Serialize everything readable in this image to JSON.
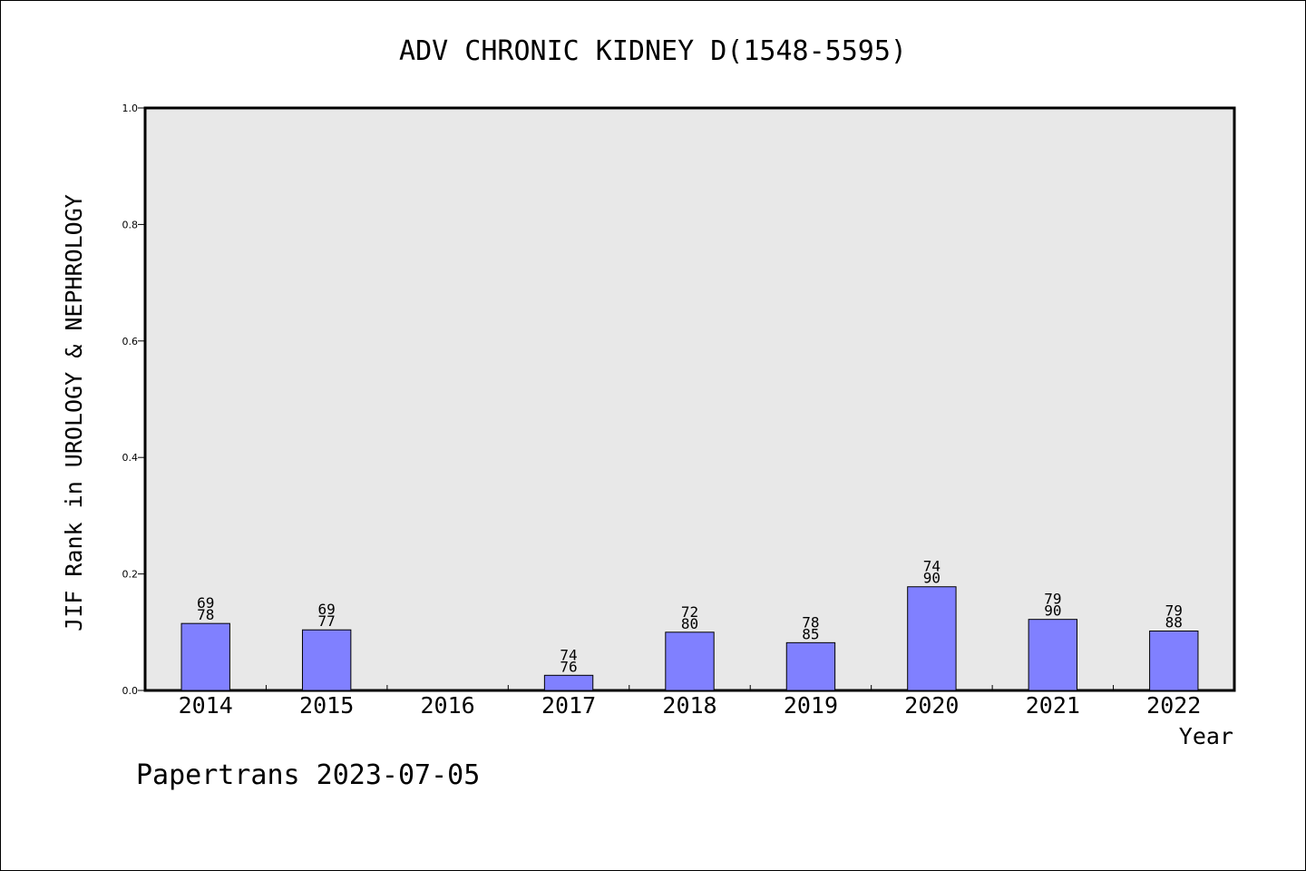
{
  "chart_data": {
    "type": "bar",
    "title": "ADV CHRONIC KIDNEY D(1548-5595)",
    "xlabel": "Year",
    "ylabel": "JIF Rank in UROLOGY & NEPHROLOGY",
    "ylim": [
      0.0,
      1.0
    ],
    "yticks": [
      "0.0",
      "0.2",
      "0.4",
      "0.6",
      "0.8",
      "1.0"
    ],
    "categories": [
      "2014",
      "2015",
      "2016",
      "2017",
      "2018",
      "2019",
      "2020",
      "2021",
      "2022"
    ],
    "values": [
      0.115,
      0.104,
      null,
      0.026,
      0.1,
      0.082,
      0.178,
      0.122,
      0.102
    ],
    "labels": [
      [
        "69",
        "78"
      ],
      [
        "69",
        "77"
      ],
      null,
      [
        "74",
        "76"
      ],
      [
        "72",
        "80"
      ],
      [
        "78",
        "85"
      ],
      [
        "74",
        "90"
      ],
      [
        "79",
        "90"
      ],
      [
        "79",
        "88"
      ]
    ],
    "grid": false,
    "colors": {
      "bar": "#8080ff",
      "plot_background": "#e8e8e8"
    }
  },
  "footer": {
    "text": "Papertrans 2023-07-05"
  }
}
